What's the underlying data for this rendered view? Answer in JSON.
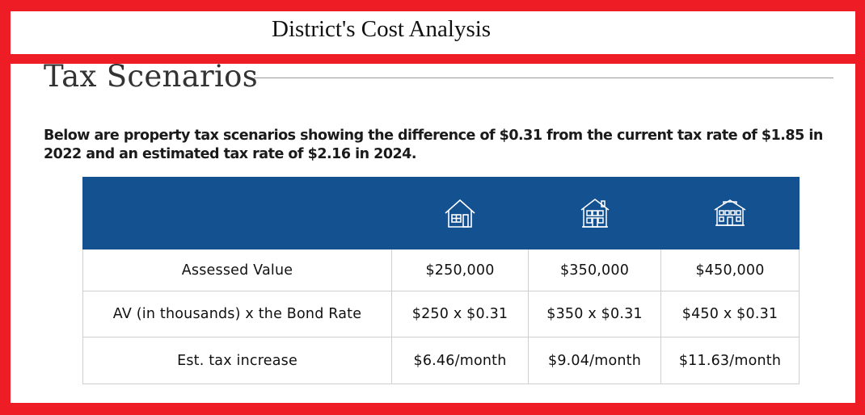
{
  "header": {
    "title": "District's Cost Analysis"
  },
  "section": {
    "heading": "Tax Scenarios",
    "intro": "Below are property tax scenarios showing the difference of $0.31 from the current tax rate of $1.85 in 2022 and an estimated tax rate of $2.16 in 2024."
  },
  "table": {
    "header_color": "#135190",
    "header_icons": [
      "small-house-icon",
      "medium-house-icon",
      "large-house-icon"
    ],
    "rows": [
      {
        "label": "Assessed Value",
        "values": [
          "$250,000",
          "$350,000",
          "$450,000"
        ]
      },
      {
        "label": "AV (in thousands) x the Bond Rate",
        "values": [
          "$250 x $0.31",
          "$350 x $0.31",
          "$450 x $0.31"
        ]
      },
      {
        "label": "Est. tax increase",
        "values": [
          "$6.46/month",
          "$9.04/month",
          "$11.63/month"
        ]
      }
    ]
  },
  "colors": {
    "frame": "#ee1c25",
    "header": "#135190"
  }
}
